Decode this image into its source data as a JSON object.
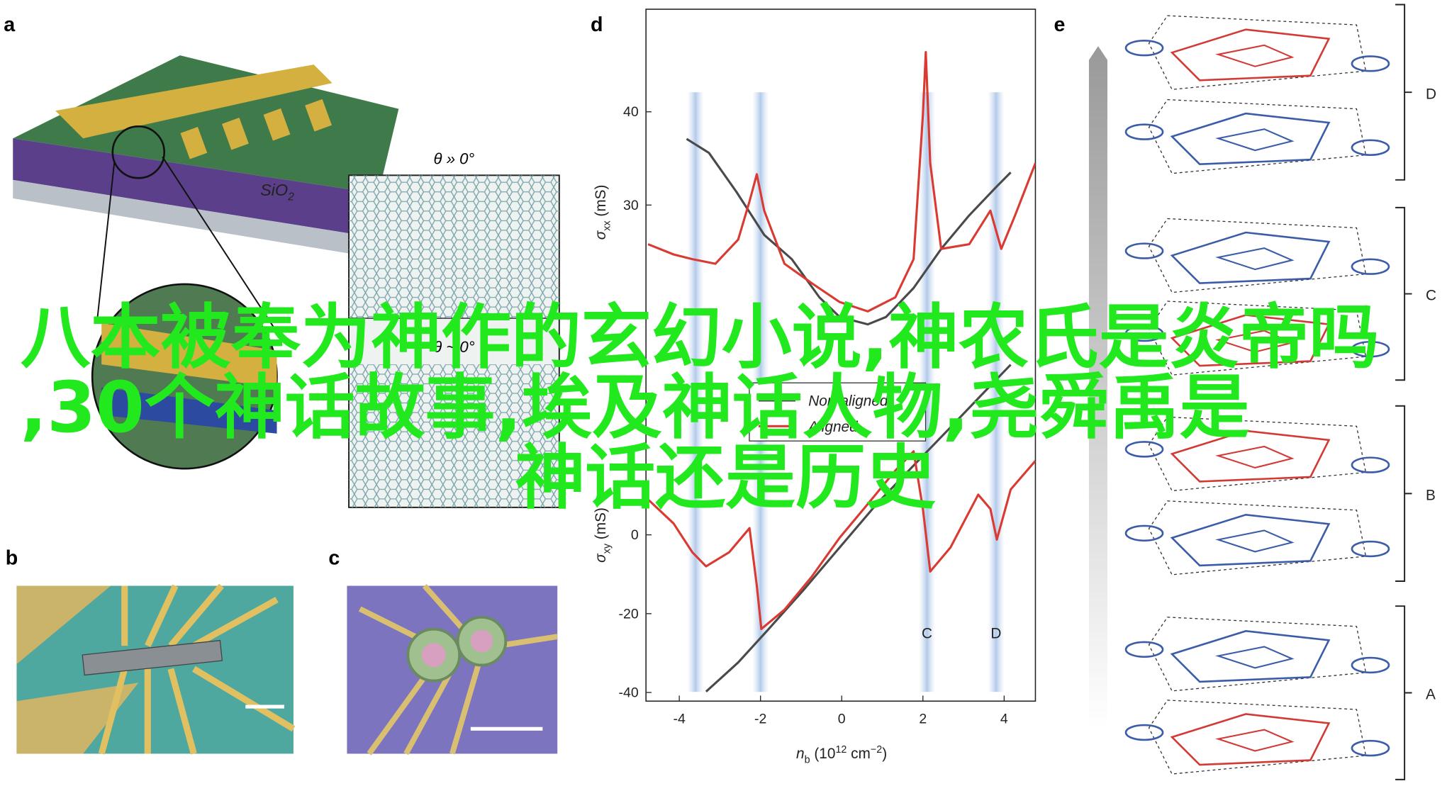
{
  "overlay_title": {
    "lines": [
      "八本被奉为神作的玄幻小说,神农氏是炎帝吗",
      ",30个神话故事,埃及神话人物,尧舜禹是",
      "神话还是历史"
    ]
  },
  "panels": {
    "a": {
      "label": "a",
      "substrate": {
        "text": "SiO",
        "sub": "2"
      },
      "inset_top": "θ » 0°",
      "inset_bottom": "θ ~ 0°"
    },
    "b": {
      "label": "b"
    },
    "c": {
      "label": "c"
    },
    "e": {
      "label": "e",
      "groups": [
        "D",
        "C",
        "B",
        "A"
      ]
    }
  },
  "chart_data": {
    "type": "line",
    "label": "d",
    "xlabel": {
      "main": "n",
      "sub": "b",
      "unit": " (10",
      "sup": "12",
      "unit2": " cm",
      "sup2": "−2",
      "end": ")"
    },
    "ylabel": {
      "main": "σ",
      "sub": "xx",
      "unit": " (mS)"
    },
    "y2label": {
      "main": "σ",
      "sub": "xy",
      "unit": " (mS)"
    },
    "xlim": [
      -4.82,
      4.77
    ],
    "xticks": [
      -4,
      -2,
      0,
      2,
      4
    ],
    "ylim": [
      -23.2,
      51.0
    ],
    "yticks": [
      30,
      40
    ],
    "y2lim": [
      -42.2,
      133.4
    ],
    "y2ticks": [
      -40,
      -20,
      0
    ],
    "highlight_x": [
      -3.6,
      -2.0,
      2.1,
      3.8
    ],
    "annotations": [
      {
        "text": "C",
        "x": 2.1
      },
      {
        "text": "D",
        "x": 3.8
      }
    ],
    "series": [
      {
        "name": "Non-aligned",
        "color": "#4a4a4a",
        "x": [
          -3.82,
          -3.27,
          -2.59,
          -1.91,
          -1.23,
          -0.55,
          -0.05,
          0.64,
          1.09,
          1.77,
          2.45,
          3.14,
          3.82,
          4.16
        ],
        "values": [
          37.1,
          35.6,
          31.4,
          26.8,
          24.2,
          20.1,
          18.0,
          17.2,
          18.0,
          21.1,
          25.3,
          28.9,
          32.0,
          33.5
        ]
      },
      {
        "name": "Aligned",
        "color": "#d93a32",
        "x": [
          -4.77,
          -4.14,
          -3.68,
          -3.11,
          -2.55,
          -2.27,
          -2.09,
          -1.91,
          -1.41,
          -0.73,
          -0.05,
          0.64,
          1.32,
          1.77,
          2.0,
          2.07,
          2.18,
          2.45,
          3.14,
          3.66,
          3.93,
          4.27,
          4.77
        ],
        "values": [
          25.8,
          24.7,
          24.2,
          23.7,
          26.3,
          30.4,
          33.3,
          29.4,
          23.7,
          21.6,
          19.6,
          18.6,
          20.1,
          24.2,
          39.7,
          46.4,
          34.5,
          25.3,
          25.8,
          29.4,
          25.3,
          28.9,
          34.5
        ]
      },
      {
        "color": "#4a4a4a",
        "axis": "y2",
        "x": [
          -3.34,
          -2.55,
          -1.86,
          -0.95,
          -0.05,
          0.86,
          1.77,
          2.68,
          3.59,
          4.16
        ],
        "values": [
          -39.8,
          -32.4,
          -24.6,
          -14.1,
          -3.2,
          7.8,
          17.6,
          27.3,
          37.1,
          43.2
        ]
      },
      {
        "color": "#d93a32",
        "axis": "y2",
        "x": [
          -4.77,
          -4.14,
          -3.68,
          -3.34,
          -2.77,
          -2.27,
          -2.09,
          -1.98,
          -1.41,
          -0.73,
          -0.05,
          0.64,
          1.32,
          1.77,
          2.0,
          2.18,
          2.68,
          3.36,
          3.66,
          3.82,
          4.16,
          4.77
        ],
        "values": [
          9.0,
          2.9,
          -4.4,
          -8.0,
          -4.4,
          1.7,
          -12.9,
          -23.9,
          -19.0,
          -10.5,
          -0.7,
          7.8,
          16.3,
          21.2,
          6.6,
          -9.3,
          -3.2,
          10.2,
          6.6,
          -1.2,
          11.5,
          18.8
        ]
      }
    ]
  }
}
